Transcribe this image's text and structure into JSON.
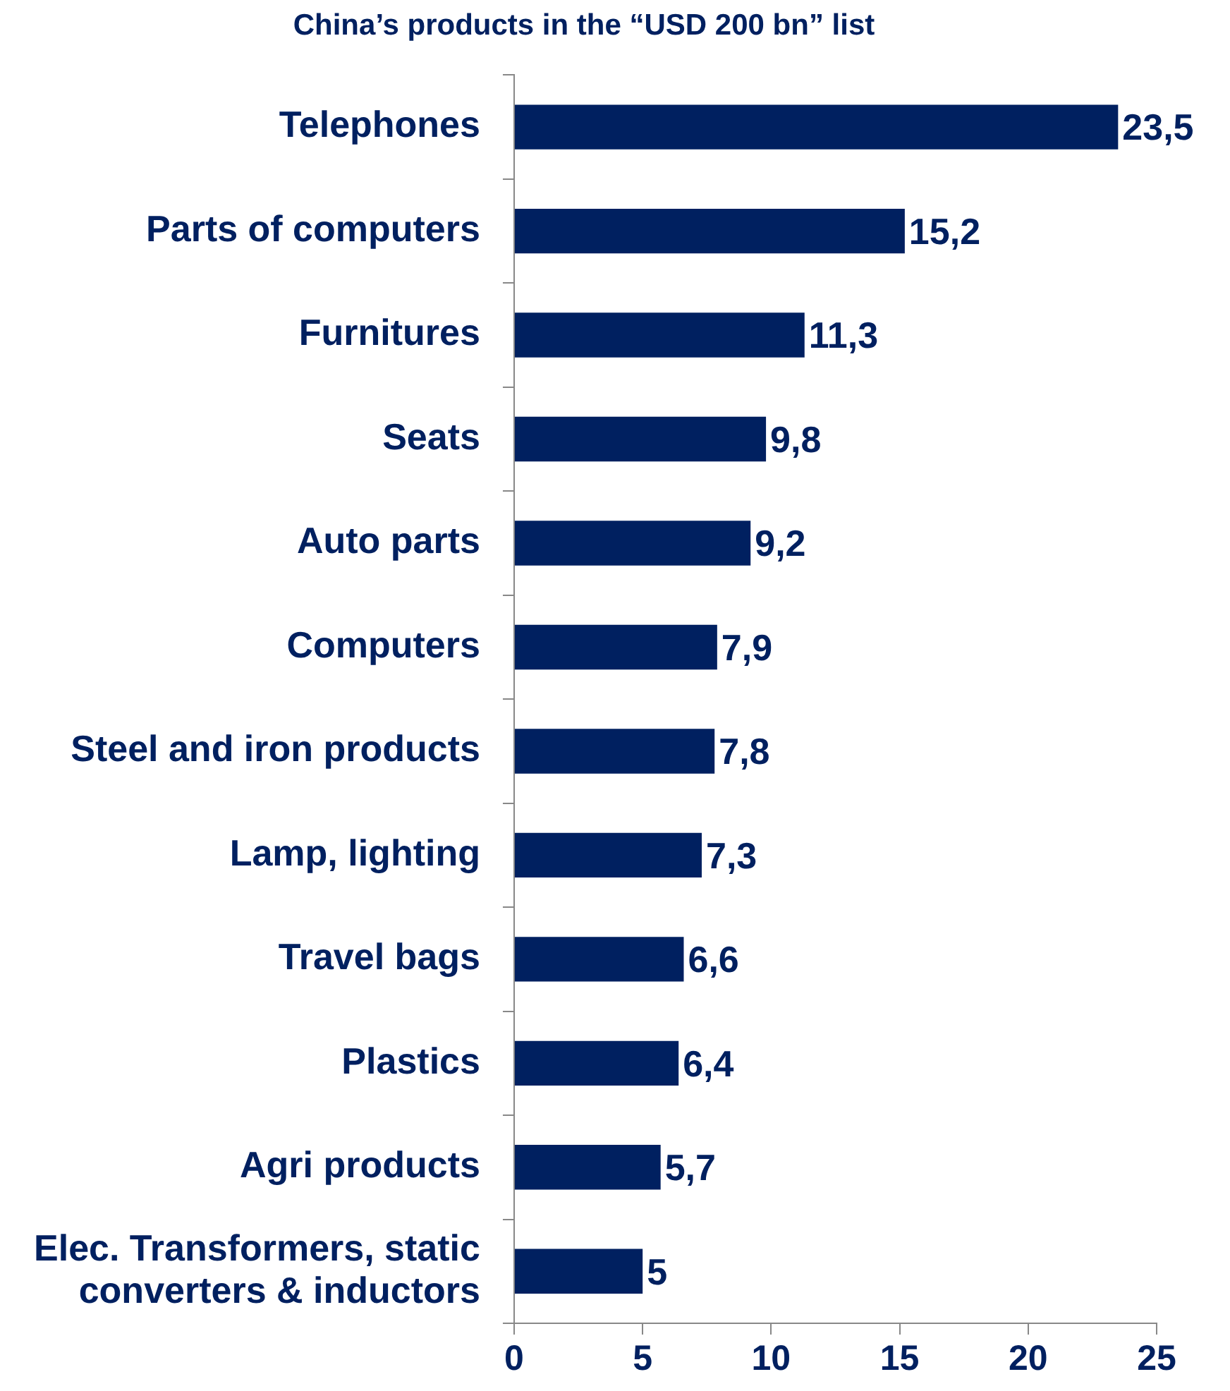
{
  "chart_data": {
    "type": "bar",
    "orientation": "horizontal",
    "title": "China’s products in the “USD 200 bn” list",
    "categories": [
      "Telephones",
      "Parts of computers",
      "Furnitures",
      "Seats",
      "Auto parts",
      "Computers",
      "Steel and iron products",
      "Lamp, lighting",
      "Travel bags",
      "Plastics",
      "Agri products",
      "Elec. Transformers, static converters & inductors"
    ],
    "values": [
      23.5,
      15.2,
      11.3,
      9.8,
      9.2,
      7.9,
      7.8,
      7.3,
      6.6,
      6.4,
      5.7,
      5
    ],
    "value_labels": [
      "23,5",
      "15,2",
      "11,3",
      "9,8",
      "9,2",
      "7,9",
      "7,8",
      "7,3",
      "6,6",
      "6,4",
      "5,7",
      "5"
    ],
    "color": "#002060",
    "xlim": [
      0,
      25
    ],
    "xticks": [
      0,
      5,
      10,
      15,
      20,
      25
    ],
    "grid": false,
    "legend": false
  }
}
